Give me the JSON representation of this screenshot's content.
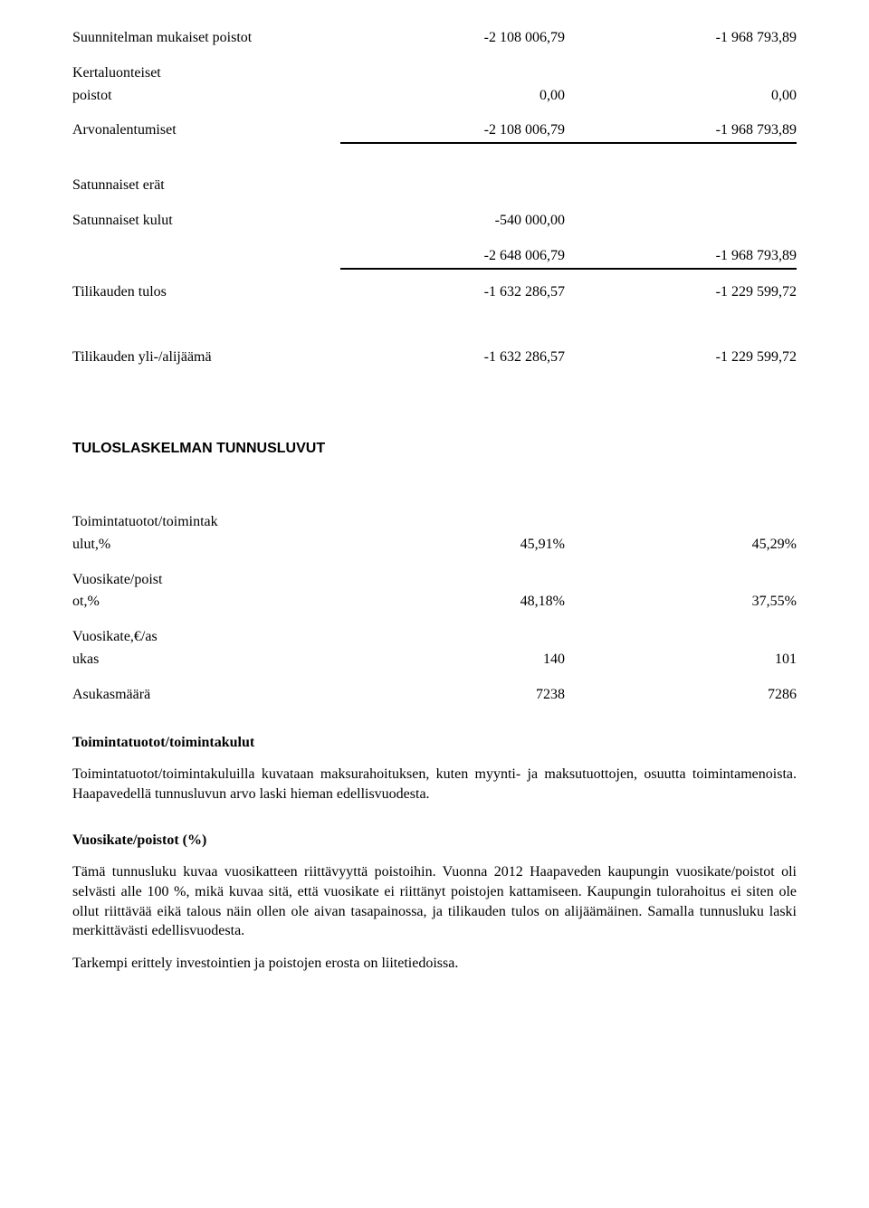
{
  "table1": {
    "rows": [
      {
        "label": "Suunnitelman mukaiset poistot",
        "v1": "-2 108 006,79",
        "v2": "-1 968 793,89"
      }
    ],
    "kertaluonteiset": {
      "label1": "Kertaluonteiset",
      "label2": "poistot",
      "v1": "0,00",
      "v2": "0,00"
    },
    "arvonalentumiset": {
      "label": "Arvonalentumiset",
      "v1": "-2 108 006,79",
      "v2": "-1 968 793,89"
    }
  },
  "table2": {
    "satunnaiset_label": "Satunnaiset erät",
    "satunnaiset_kulut": {
      "label": "Satunnaiset kulut",
      "v1": "-540 000,00",
      "v2": ""
    },
    "sum": {
      "label": "",
      "v1": "-2 648 006,79",
      "v2": "-1 968 793,89"
    },
    "tilikauden_tulos": {
      "label": "Tilikauden tulos",
      "v1": "-1 632 286,57",
      "v2": "-1 229 599,72"
    }
  },
  "tilikauden_yli": {
    "label": "Tilikauden yli-/alijäämä",
    "v1": "-1 632 286,57",
    "v2": "-1 229 599,72"
  },
  "section_title": "TULOSLASKELMAN TUNNUSLUVUT",
  "metrics": {
    "r1": {
      "l1": "Toimintatuotot/toimintak",
      "l2": "ulut,%",
      "v1": "45,91%",
      "v2": "45,29%"
    },
    "r2": {
      "l1": "Vuosikate/poist",
      "l2": "ot,%",
      "v1": "48,18%",
      "v2": "37,55%"
    },
    "r3": {
      "l1": "Vuosikate,€/as",
      "l2": "ukas",
      "v1": "140",
      "v2": "101"
    },
    "r4": {
      "label": "Asukasmäärä",
      "v1": "7238",
      "v2": "7286"
    }
  },
  "body": {
    "h1": "Toimintatuotot/toimintakulut",
    "p1": "Toimintatuotot/toimintakuluilla kuvataan maksurahoituksen, kuten myynti- ja maksutuottojen, osuutta toimintamenoista. Haapavedellä tunnusluvun arvo laski hieman edellisvuodesta.",
    "h2": "Vuosikate/poistot (%)",
    "p2": "Tämä tunnusluku kuvaa vuosikatteen riittävyyttä poistoihin. Vuonna 2012 Haapaveden kaupungin vuosikate/poistot oli selvästi alle 100 %, mikä kuvaa sitä, että vuosikate ei riittänyt poistojen kattamiseen. Kaupungin tulorahoitus ei siten ole ollut riittävää eikä talous näin ollen ole aivan tasapainossa, ja tilikauden tulos on alijäämäinen. Samalla tunnusluku laski merkittävästi edellisvuodesta.",
    "p3": "Tarkempi erittely investointien ja poistojen erosta on liitetiedoissa."
  }
}
